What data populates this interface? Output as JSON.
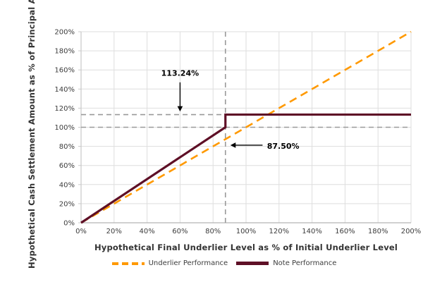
{
  "chart_data": {
    "type": "line",
    "title": "",
    "xlabel": "Hypothetical Final Underlier Level as % of Initial Underlier Level",
    "ylabel": "Hypothetical Cash Settlement Amount as % of Principal Amount",
    "xlim": [
      0,
      200
    ],
    "ylim": [
      0,
      200
    ],
    "xticks": [
      0,
      20,
      40,
      60,
      80,
      100,
      120,
      140,
      160,
      180,
      200
    ],
    "yticks": [
      0,
      20,
      40,
      60,
      80,
      100,
      120,
      140,
      160,
      180,
      200
    ],
    "tick_suffix": "%",
    "grid": true,
    "legend_position": "bottom",
    "series": [
      {
        "name": "Underlier Performance",
        "color": "#FF9900",
        "dash": "dashed",
        "points": [
          [
            0,
            0
          ],
          [
            200,
            200
          ]
        ]
      },
      {
        "name": "Note Performance",
        "color": "#5E0F26",
        "dash": "solid",
        "points": [
          [
            0,
            0
          ],
          [
            87.5,
            100
          ],
          [
            87.5,
            113.24
          ],
          [
            200,
            113.24
          ]
        ]
      }
    ],
    "reference_lines": [
      {
        "orientation": "vertical",
        "value": 87.5,
        "color": "#999999"
      },
      {
        "orientation": "horizontal",
        "value": 100,
        "color": "#999999"
      },
      {
        "orientation": "horizontal",
        "value": 113.24,
        "color": "#999999"
      }
    ],
    "annotations": [
      {
        "text": "113.24%",
        "text_at": [
          60,
          157
        ],
        "arrow_from": [
          60,
          147
        ],
        "arrow_to": [
          60,
          116.5
        ],
        "direction": "down"
      },
      {
        "text": "87.50%",
        "text_at": [
          122.5,
          80.5
        ],
        "arrow_from": [
          110,
          81.2
        ],
        "arrow_to": [
          90.5,
          81.2
        ],
        "direction": "left"
      }
    ],
    "key_values": {
      "cap_settlement_pct": "113.24%",
      "trigger_level_pct": "87.50%"
    }
  },
  "palette": {
    "background": "#ffffff",
    "grid": "#dedede",
    "spine_left": "#c9c9c9",
    "spine_bottom": "#b3b3b3",
    "tick_text": "#3c3c3c",
    "axis_title": "#333333",
    "annotation_text": "#000000",
    "reference_line": "#999999"
  }
}
